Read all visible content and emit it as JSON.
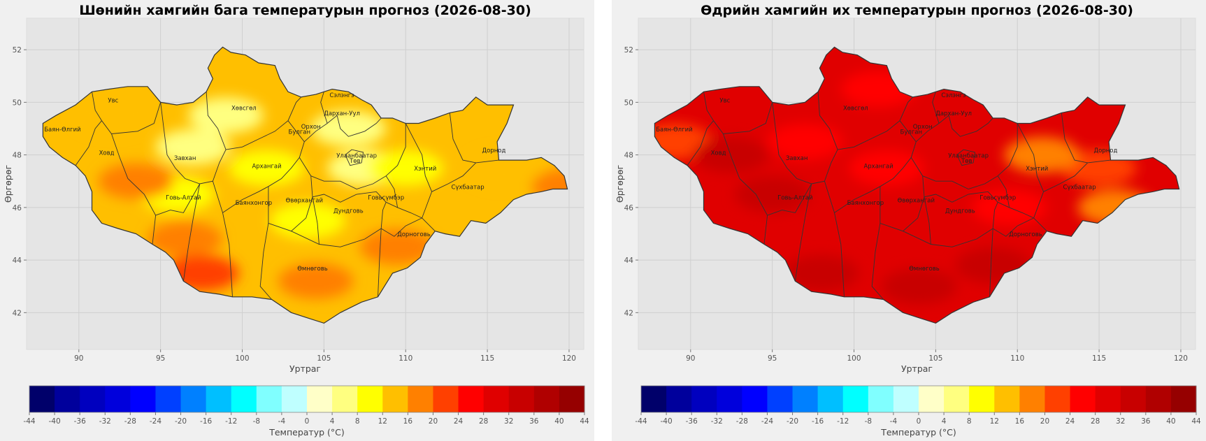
{
  "colorbar": {
    "ticks": [
      -44,
      -40,
      -36,
      -32,
      -28,
      -24,
      -20,
      -16,
      -12,
      -8,
      -4,
      0,
      4,
      8,
      12,
      16,
      20,
      24,
      28,
      32,
      36,
      40,
      44
    ],
    "colors": [
      "#00006a",
      "#00009c",
      "#0000bf",
      "#0000dc",
      "#0000ff",
      "#0040ff",
      "#0080ff",
      "#00bfff",
      "#00ffff",
      "#80ffff",
      "#bfffff",
      "#ffffc8",
      "#ffff80",
      "#ffff00",
      "#ffbf00",
      "#ff8000",
      "#ff4000",
      "#ff0000",
      "#e00000",
      "#c80000",
      "#b00000",
      "#960000"
    ],
    "label": "Температур (°C)"
  },
  "map_axes": {
    "xlabel": "Уртраг",
    "ylabel": "Өргөрөг",
    "xticks": [
      90,
      95,
      100,
      105,
      110,
      115,
      120
    ],
    "yticks": [
      42,
      44,
      46,
      48,
      50,
      52
    ],
    "xlim": [
      86.8,
      120.9
    ],
    "ylim": [
      40.6,
      53.2
    ]
  },
  "regions": [
    {
      "name": "Увс",
      "lon": 92.1,
      "lat": 50.0
    },
    {
      "name": "Баян-Өлгий",
      "lon": 89.0,
      "lat": 48.9
    },
    {
      "name": "Ховд",
      "lon": 91.7,
      "lat": 48.0
    },
    {
      "name": "Завхан",
      "lon": 96.5,
      "lat": 47.8
    },
    {
      "name": "Хөвсгөл",
      "lon": 100.1,
      "lat": 49.7
    },
    {
      "name": "Сэлэнгэ",
      "lon": 106.1,
      "lat": 50.2
    },
    {
      "name": "Дархан-Уул",
      "lon": 106.1,
      "lat": 49.5
    },
    {
      "name": "Орхон",
      "lon": 104.2,
      "lat": 49.0
    },
    {
      "name": "Булган",
      "lon": 103.5,
      "lat": 48.8
    },
    {
      "name": "Архангай",
      "lon": 101.5,
      "lat": 47.5
    },
    {
      "name": "Улаанбаатар",
      "lon": 107.0,
      "lat": 47.9
    },
    {
      "name": "Төв",
      "lon": 106.9,
      "lat": 47.7
    },
    {
      "name": "Хэнтий",
      "lon": 111.2,
      "lat": 47.4
    },
    {
      "name": "Дорнод",
      "lon": 115.4,
      "lat": 48.1
    },
    {
      "name": "Сүхбаатар",
      "lon": 113.8,
      "lat": 46.7
    },
    {
      "name": "Говь-Алтай",
      "lon": 96.4,
      "lat": 46.3
    },
    {
      "name": "Баянхонгор",
      "lon": 100.7,
      "lat": 46.1
    },
    {
      "name": "Өвөрхангай",
      "lon": 103.8,
      "lat": 46.2
    },
    {
      "name": "Дундговь",
      "lon": 106.5,
      "lat": 45.8
    },
    {
      "name": "Говьсүмбэр",
      "lon": 108.8,
      "lat": 46.3
    },
    {
      "name": "Дорноговь",
      "lon": 110.5,
      "lat": 44.9
    },
    {
      "name": "Өмнөговь",
      "lon": 104.3,
      "lat": 43.6
    }
  ],
  "chart_data": [
    {
      "type": "heatmap",
      "title": "Шөнийн хамгийн бага температурын прогноз (2026-08-30)",
      "xlabel": "Уртраг",
      "ylabel": "Өргөрөг",
      "value_range_C": [
        4,
        20
      ],
      "base_value_C": 12,
      "zones": [
        {
          "lon": 99.0,
          "lat": 49.5,
          "value": 4
        },
        {
          "lon": 97.0,
          "lat": 48.3,
          "value": 4
        },
        {
          "lon": 106.5,
          "lat": 49.0,
          "value": 4
        },
        {
          "lon": 107.5,
          "lat": 47.5,
          "value": 4
        },
        {
          "lon": 101.5,
          "lat": 47.5,
          "value": 8
        },
        {
          "lon": 110.0,
          "lat": 47.5,
          "value": 8
        },
        {
          "lon": 104.0,
          "lat": 45.5,
          "value": 8
        },
        {
          "lon": 96.0,
          "lat": 46.5,
          "value": 8
        },
        {
          "lon": 92.0,
          "lat": 49.5,
          "value": 12
        },
        {
          "lon": 116.0,
          "lat": 47.5,
          "value": 12
        },
        {
          "lon": 96.5,
          "lat": 44.8,
          "value": 16
        },
        {
          "lon": 104.5,
          "lat": 43.2,
          "value": 16
        },
        {
          "lon": 93.5,
          "lat": 47.0,
          "value": 16
        },
        {
          "lon": 109.5,
          "lat": 44.5,
          "value": 16
        },
        {
          "lon": 97.5,
          "lat": 43.5,
          "value": 20
        },
        {
          "lon": 120.0,
          "lat": 46.8,
          "value": 16
        }
      ]
    },
    {
      "type": "heatmap",
      "title": "Өдрийн хамгийн их температурын прогноз (2026-08-30)",
      "xlabel": "Уртраг",
      "ylabel": "Өргөрөг",
      "value_range_C": [
        16,
        36
      ],
      "base_value_C": 28,
      "zones": [
        {
          "lon": 101.5,
          "lat": 50.5,
          "value": 24
        },
        {
          "lon": 97.0,
          "lat": 48.5,
          "value": 24
        },
        {
          "lon": 102.0,
          "lat": 47.5,
          "value": 24
        },
        {
          "lon": 109.5,
          "lat": 46.0,
          "value": 24
        },
        {
          "lon": 115.0,
          "lat": 47.5,
          "value": 20
        },
        {
          "lon": 111.5,
          "lat": 48.0,
          "value": 16
        },
        {
          "lon": 116.0,
          "lat": 46.0,
          "value": 16
        },
        {
          "lon": 89.0,
          "lat": 48.5,
          "value": 20
        },
        {
          "lon": 98.0,
          "lat": 43.5,
          "value": 32
        },
        {
          "lon": 104.0,
          "lat": 43.0,
          "value": 32
        },
        {
          "lon": 95.0,
          "lat": 46.5,
          "value": 32
        },
        {
          "lon": 92.5,
          "lat": 48.0,
          "value": 32
        },
        {
          "lon": 108.5,
          "lat": 43.8,
          "value": 32
        }
      ]
    }
  ]
}
